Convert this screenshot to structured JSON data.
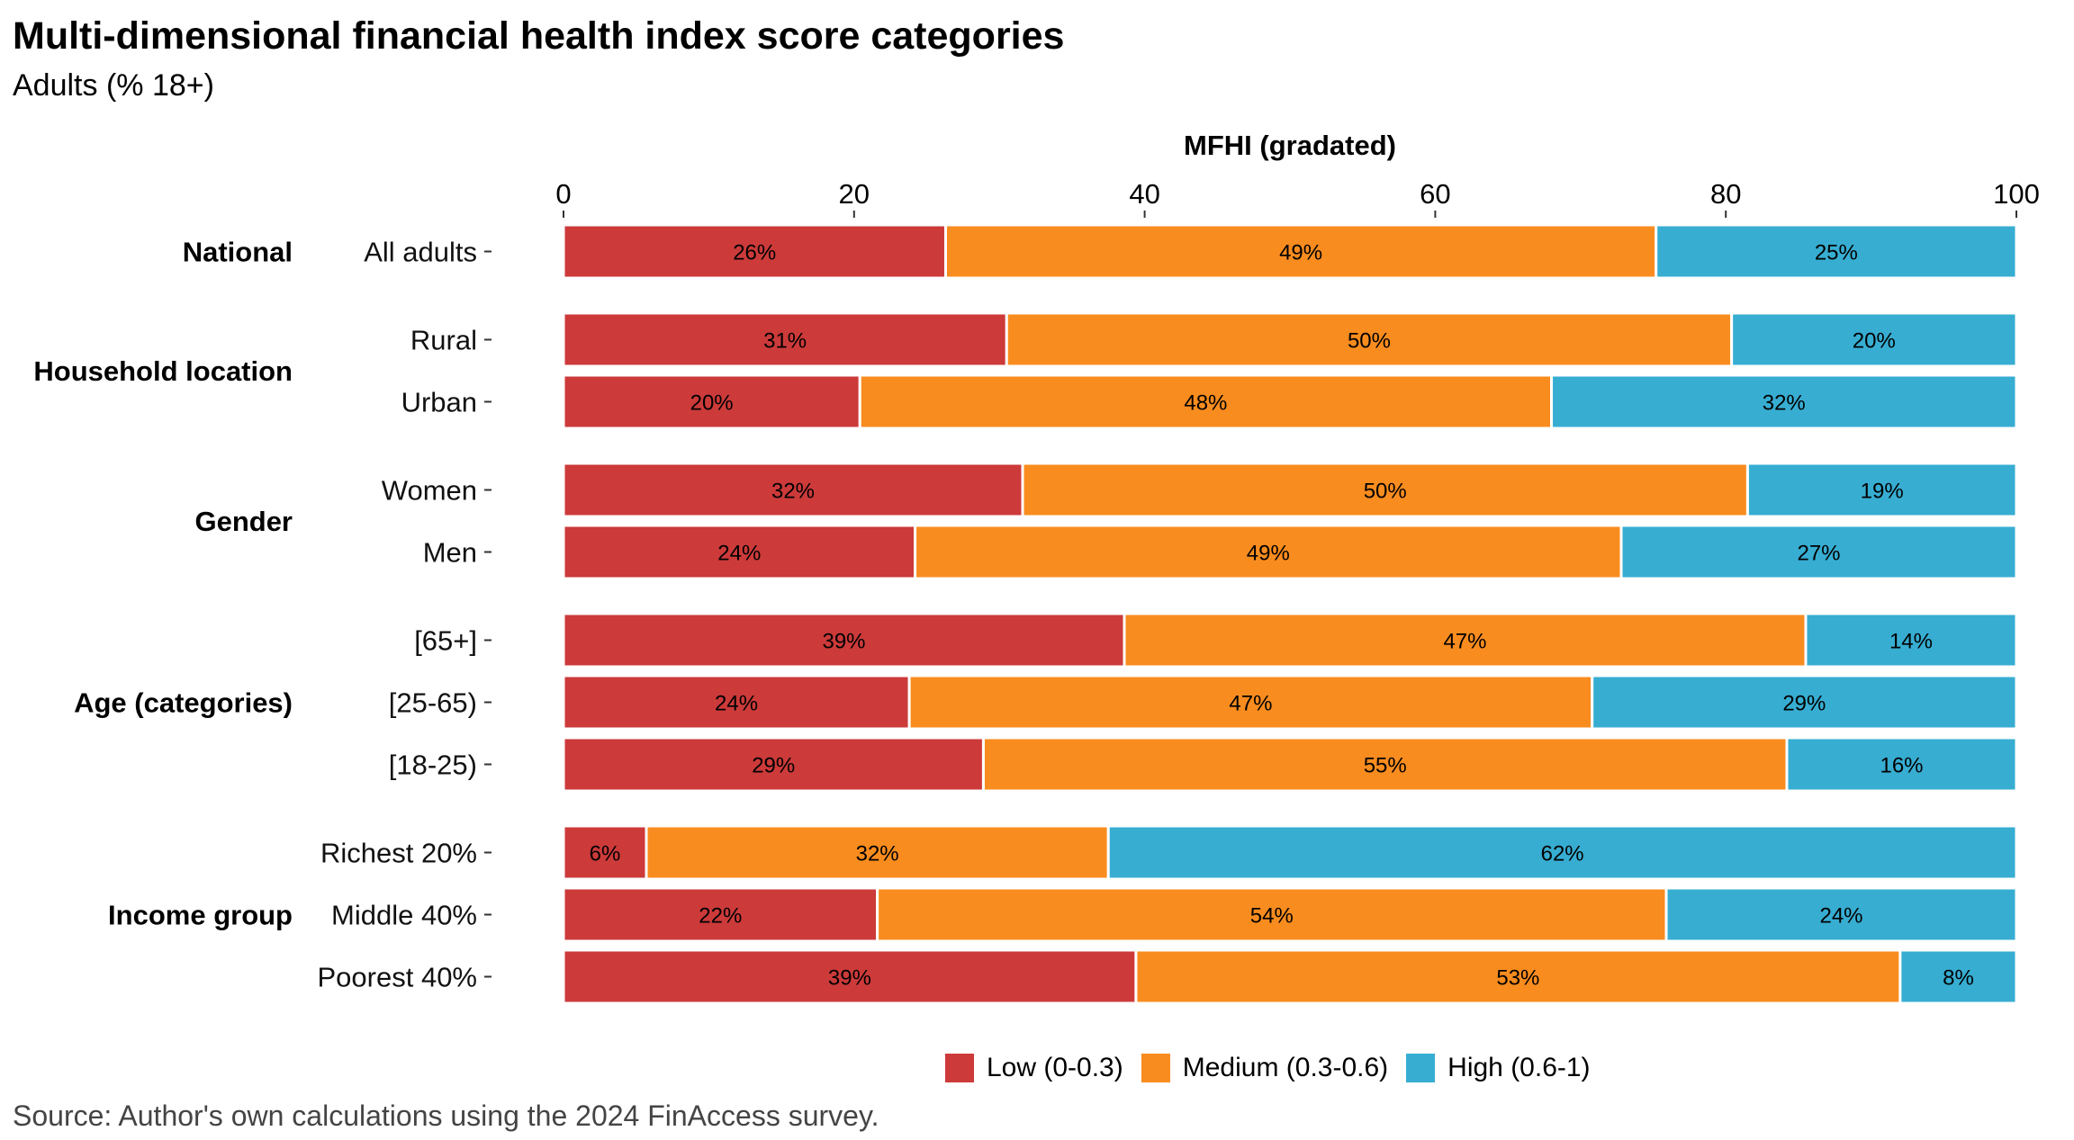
{
  "chart_data": {
    "type": "bar",
    "orientation": "horizontal",
    "stacked": true,
    "title": "Multi-dimensional financial health index score categories",
    "subtitle": "Adults (% 18+)",
    "xlabel": "MFHI (gradated)",
    "xlim": [
      0,
      100
    ],
    "x_ticks": [
      "0",
      "20",
      "40",
      "60",
      "80",
      "100"
    ],
    "source": "Source: Author's own calculations using the 2024 FinAccess survey.",
    "legend_position": "bottom",
    "series": [
      {
        "name": "Low (0-0.3)",
        "color": "#CC3A3A"
      },
      {
        "name": "Medium (0.3-0.6)",
        "color": "#F98C1F"
      },
      {
        "name": "High (0.6-1)",
        "color": "#37ADD2"
      }
    ],
    "groups": [
      {
        "name": "National",
        "rows": [
          {
            "label": "All adults",
            "values": [
              26.3,
              48.9,
              24.8
            ],
            "labels": [
              "26%",
              "49%",
              "25%"
            ]
          }
        ]
      },
      {
        "name": "Household location",
        "rows": [
          {
            "label": "Rural",
            "values": [
              30.5,
              49.9,
              19.6
            ],
            "labels": [
              "31%",
              "50%",
              "20%"
            ]
          },
          {
            "label": "Urban",
            "values": [
              20.4,
              47.6,
              32.0
            ],
            "labels": [
              "20%",
              "48%",
              "32%"
            ]
          }
        ]
      },
      {
        "name": "Gender",
        "rows": [
          {
            "label": "Women",
            "values": [
              31.6,
              49.9,
              18.5
            ],
            "labels": [
              "32%",
              "50%",
              "19%"
            ]
          },
          {
            "label": "Men",
            "values": [
              24.2,
              48.6,
              27.2
            ],
            "labels": [
              "24%",
              "49%",
              "27%"
            ]
          }
        ]
      },
      {
        "name": "Age (categories)",
        "rows": [
          {
            "label": "[65+]",
            "values": [
              38.6,
              46.9,
              14.5
            ],
            "labels": [
              "39%",
              "47%",
              "14%"
            ]
          },
          {
            "label": "[25-65)",
            "values": [
              23.8,
              47.0,
              29.2
            ],
            "labels": [
              "24%",
              "47%",
              "29%"
            ]
          },
          {
            "label": "[18-25)",
            "values": [
              28.9,
              55.3,
              15.8
            ],
            "labels": [
              "29%",
              "55%",
              "16%"
            ]
          }
        ]
      },
      {
        "name": "Income group",
        "rows": [
          {
            "label": "Richest 20%",
            "values": [
              5.7,
              31.8,
              62.5
            ],
            "labels": [
              "6%",
              "32%",
              "62%"
            ]
          },
          {
            "label": "Middle 40%",
            "values": [
              21.6,
              54.3,
              24.1
            ],
            "labels": [
              "22%",
              "54%",
              "24%"
            ]
          },
          {
            "label": "Poorest 40%",
            "values": [
              39.4,
              52.6,
              8.0
            ],
            "labels": [
              "39%",
              "53%",
              "8%"
            ]
          }
        ]
      }
    ]
  }
}
